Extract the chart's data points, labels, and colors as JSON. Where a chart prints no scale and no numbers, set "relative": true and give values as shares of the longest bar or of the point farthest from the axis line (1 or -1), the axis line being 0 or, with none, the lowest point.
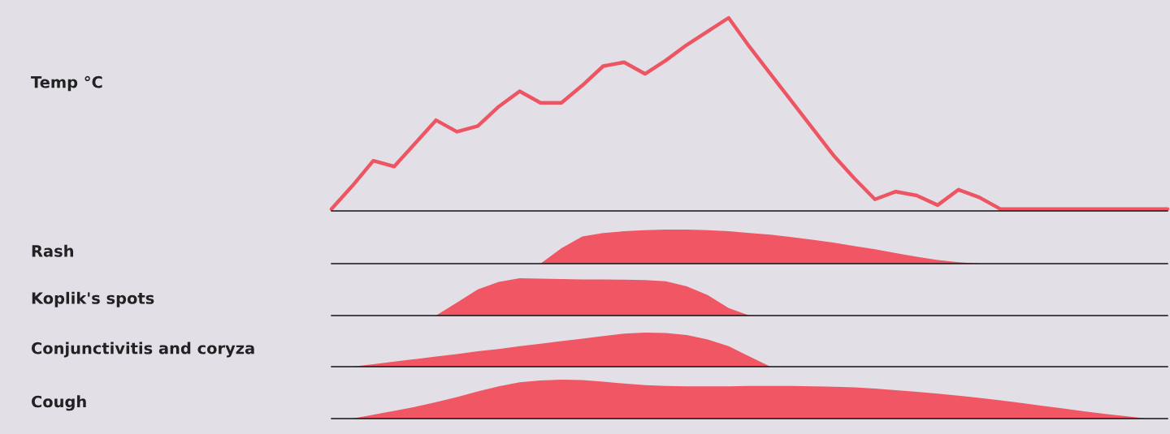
{
  "chart_data": [
    {
      "type": "line",
      "ylabel": "Temp °C",
      "relative": true,
      "categories": [
        null,
        null,
        null,
        null,
        null,
        null,
        null,
        null,
        null,
        null,
        null,
        null,
        null,
        null,
        null,
        null,
        null,
        null,
        null,
        null,
        null,
        null,
        null,
        null,
        null,
        null,
        null,
        null,
        null,
        null,
        null,
        null,
        null,
        null,
        null,
        null,
        null,
        null,
        null,
        null,
        null
      ],
      "series": [
        {
          "color": "#ee5563",
          "values": [
            0.01,
            0.13,
            0.26,
            0.23,
            0.35,
            0.47,
            0.41,
            0.44,
            0.54,
            0.62,
            0.56,
            0.56,
            0.65,
            0.75,
            0.77,
            0.71,
            0.78,
            0.86,
            0.93,
            1.0,
            0.85,
            0.71,
            0.57,
            0.43,
            0.29,
            0.17,
            0.06,
            0.1,
            0.08,
            0.03,
            0.11,
            0.07,
            0.01,
            0.01,
            0.01,
            0.01,
            0.01,
            0.01,
            0.01,
            0.01,
            0.01
          ]
        }
      ]
    },
    {
      "type": "area",
      "ylabel": "Rash",
      "relative": true,
      "categories": [
        null,
        null,
        null,
        null,
        null,
        null,
        null,
        null,
        null,
        null,
        null,
        null,
        null,
        null,
        null,
        null,
        null,
        null,
        null,
        null,
        null,
        null,
        null,
        null,
        null,
        null,
        null,
        null,
        null,
        null,
        null,
        null,
        null,
        null,
        null,
        null,
        null,
        null,
        null,
        null,
        null
      ],
      "series": [
        {
          "color": "#f05664",
          "values": [
            0,
            0,
            0,
            0,
            0,
            0,
            0,
            0,
            0,
            0,
            0,
            0.45,
            0.8,
            0.9,
            0.95,
            0.98,
            1.0,
            1.0,
            0.98,
            0.95,
            0.9,
            0.85,
            0.78,
            0.7,
            0.62,
            0.52,
            0.42,
            0.31,
            0.2,
            0.11,
            0.04,
            0,
            0,
            0,
            0,
            0,
            0,
            0,
            0,
            0,
            0
          ]
        }
      ]
    },
    {
      "type": "area",
      "ylabel": "Koplik's spots",
      "relative": true,
      "categories": [
        null,
        null,
        null,
        null,
        null,
        null,
        null,
        null,
        null,
        null,
        null,
        null,
        null,
        null,
        null,
        null,
        null,
        null,
        null,
        null,
        null,
        null,
        null,
        null,
        null,
        null,
        null,
        null,
        null,
        null,
        null,
        null,
        null,
        null,
        null,
        null,
        null,
        null,
        null,
        null,
        null
      ],
      "series": [
        {
          "color": "#f05664",
          "values": [
            0,
            0,
            0,
            0,
            0,
            0,
            0.35,
            0.7,
            0.9,
            1.0,
            0.99,
            0.98,
            0.97,
            0.97,
            0.96,
            0.95,
            0.92,
            0.78,
            0.55,
            0.2,
            0,
            0,
            0,
            0,
            0,
            0,
            0,
            0,
            0,
            0,
            0,
            0,
            0,
            0,
            0,
            0,
            0,
            0,
            0,
            0,
            0
          ]
        }
      ]
    },
    {
      "type": "area",
      "ylabel": "Conjunctivitis and coryza",
      "relative": true,
      "categories": [
        null,
        null,
        null,
        null,
        null,
        null,
        null,
        null,
        null,
        null,
        null,
        null,
        null,
        null,
        null,
        null,
        null,
        null,
        null,
        null,
        null,
        null,
        null,
        null,
        null,
        null,
        null,
        null,
        null,
        null,
        null,
        null,
        null,
        null,
        null,
        null,
        null,
        null,
        null,
        null,
        null
      ],
      "series": [
        {
          "color": "#f05664",
          "values": [
            0,
            0,
            0.07,
            0.15,
            0.22,
            0.3,
            0.37,
            0.45,
            0.52,
            0.6,
            0.67,
            0.75,
            0.82,
            0.9,
            0.97,
            1.0,
            0.99,
            0.93,
            0.8,
            0.6,
            0.3,
            0,
            0,
            0,
            0,
            0,
            0,
            0,
            0,
            0,
            0,
            0,
            0,
            0,
            0,
            0,
            0,
            0,
            0,
            0,
            0
          ]
        }
      ]
    },
    {
      "type": "area",
      "ylabel": "Cough",
      "relative": true,
      "categories": [
        null,
        null,
        null,
        null,
        null,
        null,
        null,
        null,
        null,
        null,
        null,
        null,
        null,
        null,
        null,
        null,
        null,
        null,
        null,
        null,
        null,
        null,
        null,
        null,
        null,
        null,
        null,
        null,
        null,
        null,
        null,
        null,
        null,
        null,
        null,
        null,
        null,
        null,
        null,
        null,
        null
      ],
      "series": [
        {
          "color": "#f05664",
          "values": [
            0,
            0,
            0.1,
            0.2,
            0.3,
            0.42,
            0.55,
            0.7,
            0.83,
            0.93,
            0.98,
            1.0,
            0.99,
            0.95,
            0.9,
            0.86,
            0.84,
            0.83,
            0.83,
            0.83,
            0.84,
            0.84,
            0.84,
            0.83,
            0.82,
            0.8,
            0.77,
            0.73,
            0.69,
            0.64,
            0.59,
            0.53,
            0.47,
            0.4,
            0.33,
            0.26,
            0.19,
            0.12,
            0.06,
            0,
            0
          ]
        }
      ]
    }
  ]
}
